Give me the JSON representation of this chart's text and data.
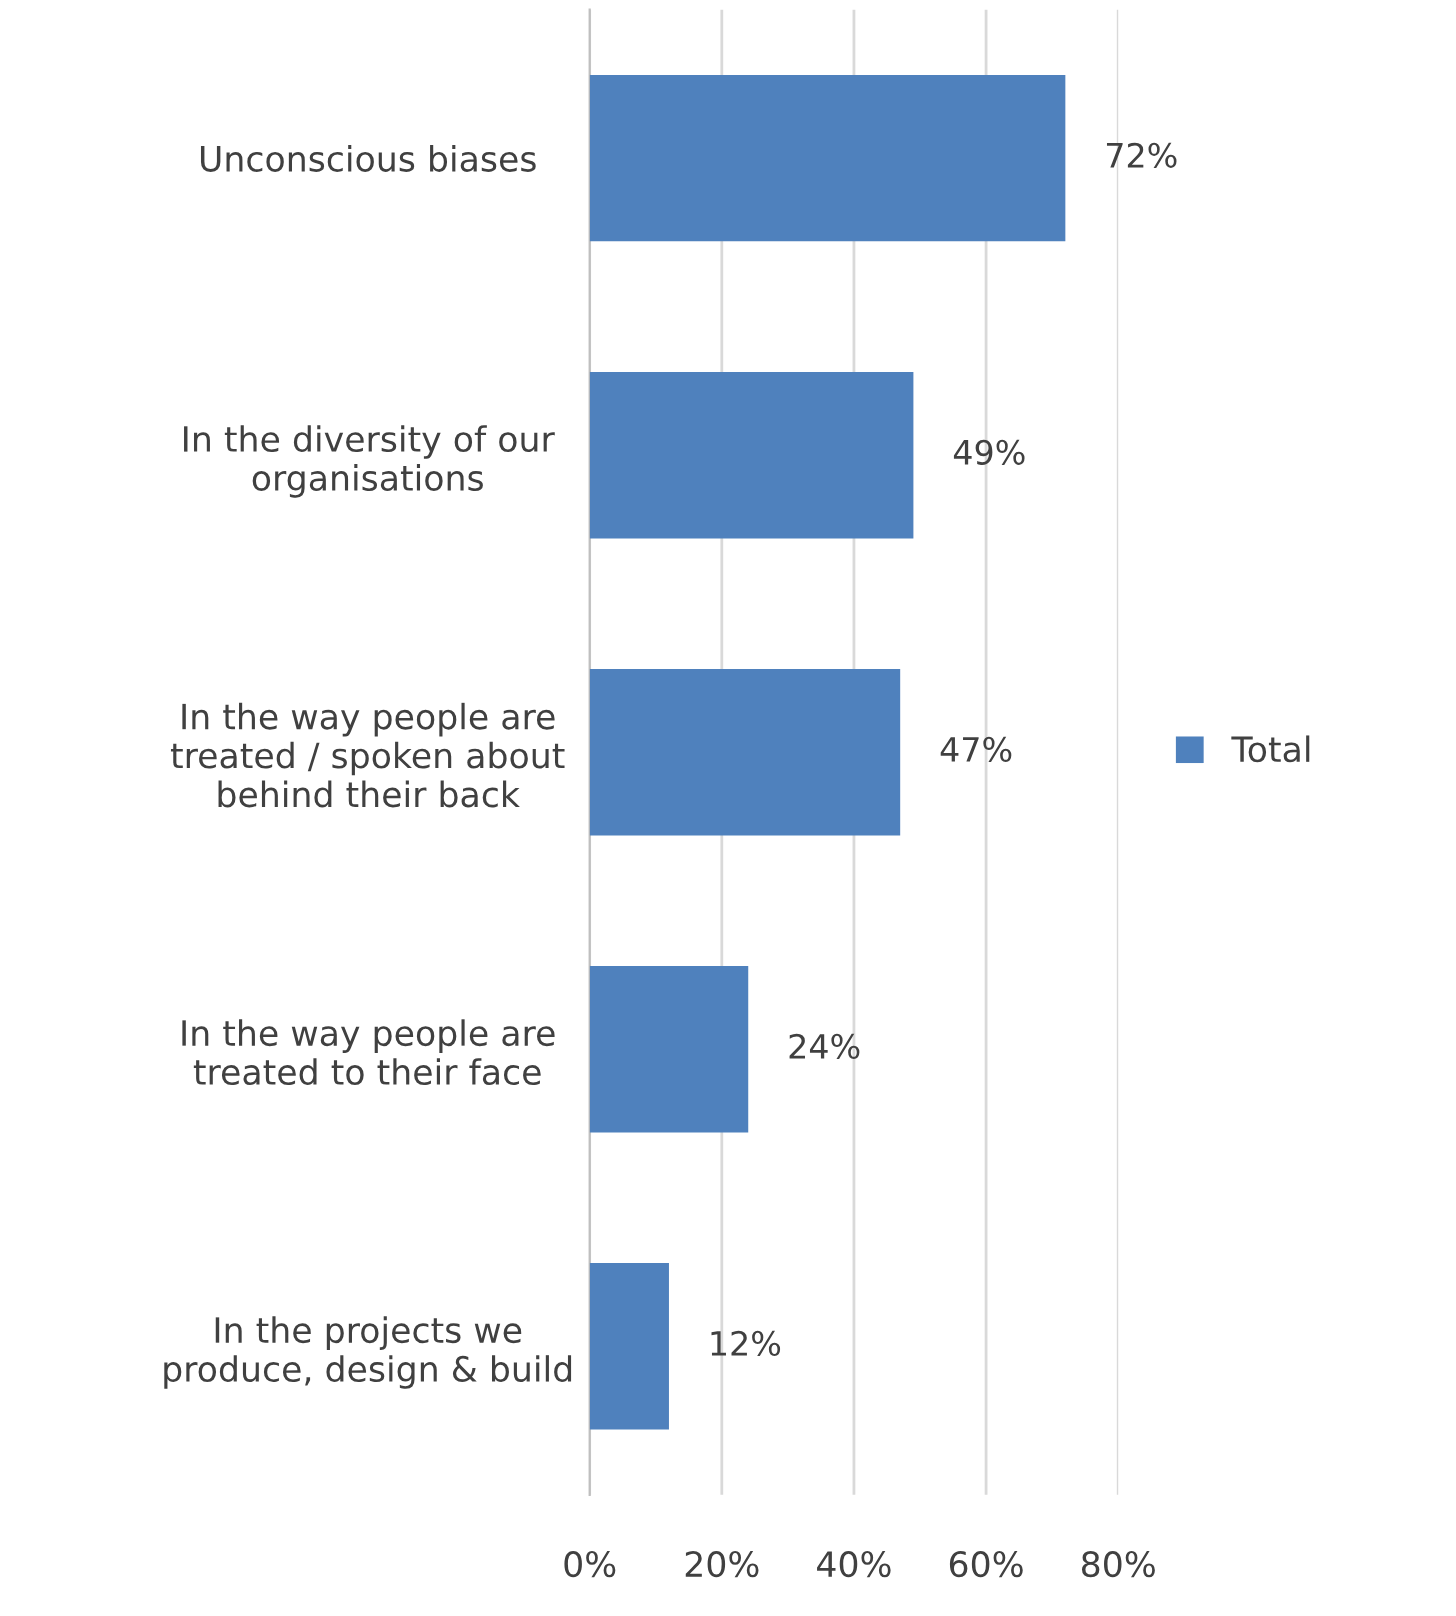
{
  "chart_data": {
    "type": "bar",
    "orientation": "horizontal",
    "categories": [
      "Unconscious biases",
      "In the diversity of our\norganisations",
      "In the way people are\ntreated / spoken about\nbehind their back",
      "In the way people are\ntreated to their face",
      "In the projects we\nproduce, design & build"
    ],
    "series": [
      {
        "name": "Total",
        "color": "#4f81bd",
        "values": [
          72,
          49,
          47,
          24,
          12
        ]
      }
    ],
    "value_labels": [
      "72%",
      "49%",
      "47%",
      "24%",
      "12%"
    ],
    "xlim": [
      0,
      80
    ],
    "xticks": [
      {
        "value": 0,
        "label": "0%"
      },
      {
        "value": 20,
        "label": "20%"
      },
      {
        "value": 40,
        "label": "40%"
      },
      {
        "value": 60,
        "label": "60%"
      },
      {
        "value": 80,
        "label": "80%"
      }
    ],
    "grid": "x",
    "legend": "right"
  }
}
